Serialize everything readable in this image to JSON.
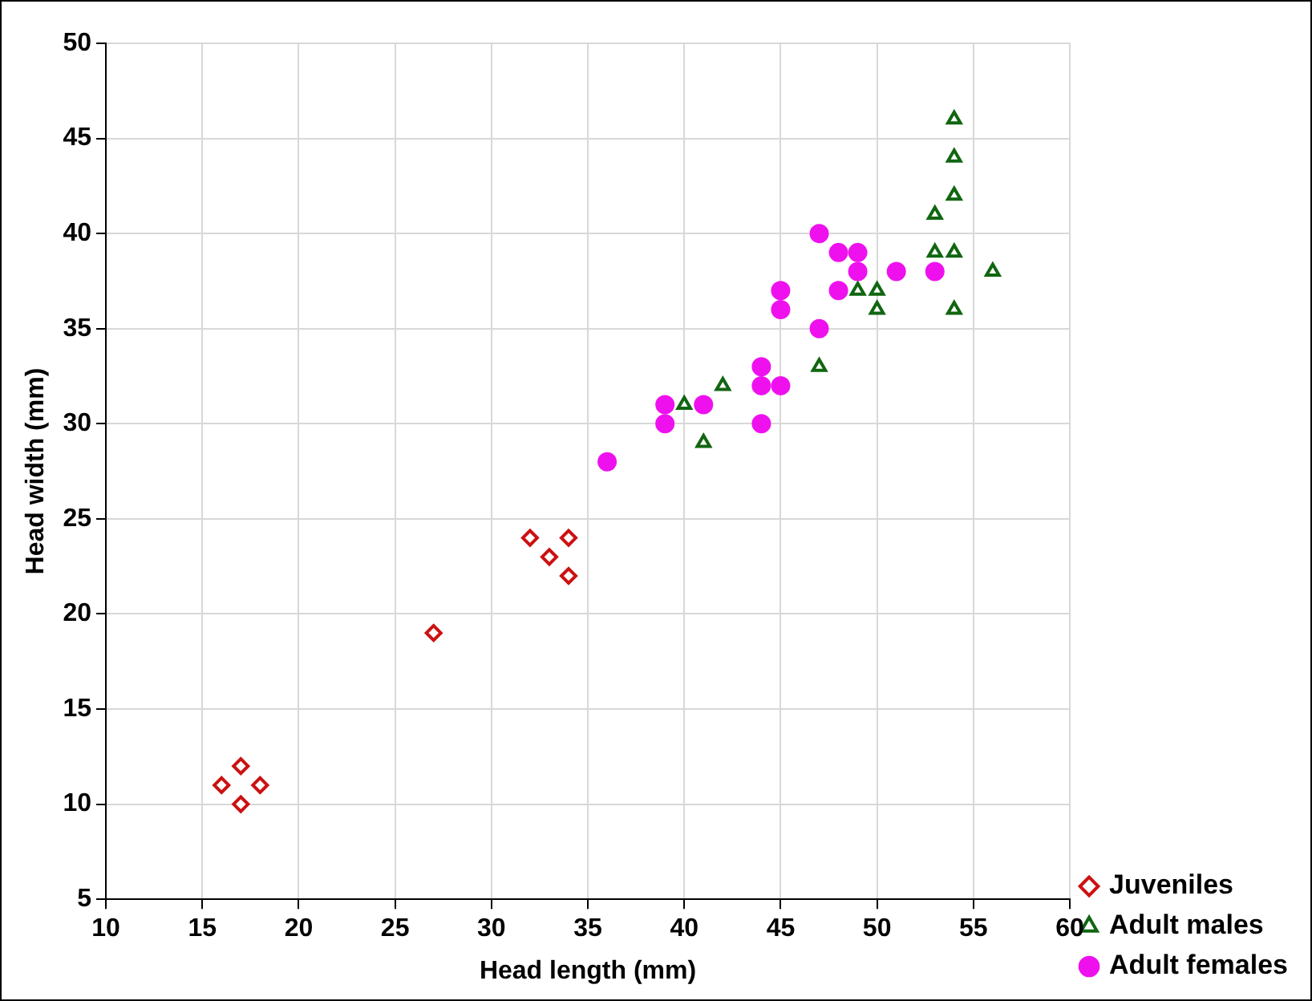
{
  "chart_data": {
    "type": "scatter",
    "xlabel": "Head length (mm)",
    "ylabel": "Head width (mm)",
    "xlim": [
      10,
      60
    ],
    "xticks": [
      10,
      15,
      20,
      25,
      30,
      35,
      40,
      45,
      50,
      55,
      60
    ],
    "ylim": [
      5,
      50
    ],
    "yticks": [
      5,
      10,
      15,
      20,
      25,
      30,
      35,
      40,
      45,
      50
    ],
    "grid": true,
    "legend": "bottom right",
    "series": [
      {
        "name": "Juveniles",
        "color": "#cc1111",
        "marker": "diamond",
        "x": [
          16,
          17,
          17,
          18,
          27,
          32,
          34,
          33,
          34
        ],
        "values": [
          11,
          12,
          10,
          11,
          19,
          24,
          24,
          23,
          22
        ]
      },
      {
        "name": "Adult males",
        "color": "#116611",
        "marker": "triangle",
        "x": [
          40,
          41,
          42,
          47,
          49,
          50,
          50,
          53,
          53,
          54,
          54,
          54,
          54,
          54,
          56
        ],
        "values": [
          31,
          29,
          32,
          33,
          37,
          37,
          36,
          41,
          39,
          39,
          46,
          44,
          42,
          36,
          38
        ]
      },
      {
        "name": "Adult females",
        "color": "#ee11ee",
        "marker": "circle",
        "x": [
          36,
          39,
          39,
          41,
          44,
          44,
          45,
          44,
          45,
          45,
          47,
          48,
          49,
          49,
          48,
          47,
          51,
          53
        ],
        "values": [
          28,
          31,
          30,
          31,
          33,
          32,
          32,
          30,
          37,
          36,
          40,
          39,
          39,
          38,
          37,
          35,
          38,
          38
        ]
      }
    ]
  }
}
